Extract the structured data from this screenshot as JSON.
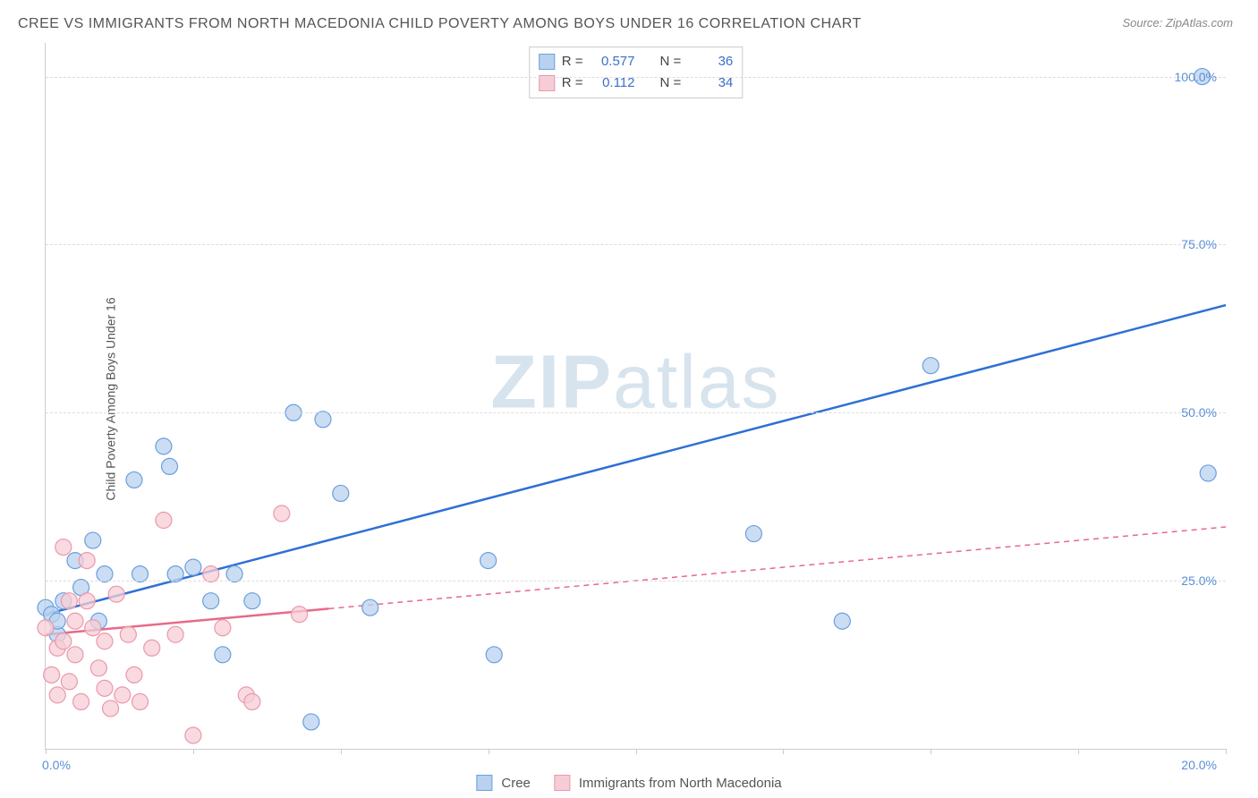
{
  "title": "CREE VS IMMIGRANTS FROM NORTH MACEDONIA CHILD POVERTY AMONG BOYS UNDER 16 CORRELATION CHART",
  "source": "Source: ZipAtlas.com",
  "ylabel": "Child Poverty Among Boys Under 16",
  "watermark_a": "ZIP",
  "watermark_b": "atlas",
  "chart": {
    "type": "scatter",
    "xlim": [
      0,
      20
    ],
    "ylim": [
      0,
      105
    ],
    "xtick_positions": [
      0,
      2.5,
      5,
      7.5,
      10,
      12.5,
      15,
      17.5,
      20
    ],
    "xtick_labels": {
      "0": "0.0%",
      "20": "20.0%"
    },
    "ytick_positions": [
      25,
      50,
      75,
      100
    ],
    "ytick_labels": [
      "25.0%",
      "50.0%",
      "75.0%",
      "100.0%"
    ],
    "grid_color": "#dddddd",
    "background_color": "#ffffff",
    "series": [
      {
        "name": "Cree",
        "color_fill": "#b9d1ef",
        "color_stroke": "#6a9fe0",
        "line_color": "#2e6fd6",
        "line_dash": "",
        "r": 0.577,
        "n": 36,
        "marker_r": 9,
        "trend": {
          "x1": 0,
          "y1": 20,
          "x2": 20,
          "y2": 66
        },
        "trend_solid_until": 20,
        "points": [
          [
            0.0,
            21
          ],
          [
            0.1,
            20
          ],
          [
            0.2,
            17
          ],
          [
            0.2,
            19
          ],
          [
            0.3,
            22
          ],
          [
            0.5,
            28
          ],
          [
            0.6,
            24
          ],
          [
            0.8,
            31
          ],
          [
            0.9,
            19
          ],
          [
            1.0,
            26
          ],
          [
            1.5,
            40
          ],
          [
            1.6,
            26
          ],
          [
            2.0,
            45
          ],
          [
            2.1,
            42
          ],
          [
            2.2,
            26
          ],
          [
            2.5,
            27
          ],
          [
            2.8,
            22
          ],
          [
            3.0,
            14
          ],
          [
            3.2,
            26
          ],
          [
            3.5,
            22
          ],
          [
            4.2,
            50
          ],
          [
            4.5,
            4
          ],
          [
            4.7,
            49
          ],
          [
            5.0,
            38
          ],
          [
            5.5,
            21
          ],
          [
            7.5,
            28
          ],
          [
            7.6,
            14
          ],
          [
            12.0,
            32
          ],
          [
            13.5,
            19
          ],
          [
            15.0,
            57
          ],
          [
            19.6,
            100
          ],
          [
            19.7,
            41
          ]
        ]
      },
      {
        "name": "Immigrants from North Macedonia",
        "color_fill": "#f6cdd6",
        "color_stroke": "#eb98ab",
        "line_color": "#e76a8a",
        "line_dash": "6,5",
        "r": 0.112,
        "n": 34,
        "marker_r": 9,
        "trend": {
          "x1": 0,
          "y1": 17,
          "x2": 20,
          "y2": 33
        },
        "trend_solid_until": 4.8,
        "points": [
          [
            0.0,
            18
          ],
          [
            0.1,
            11
          ],
          [
            0.2,
            8
          ],
          [
            0.2,
            15
          ],
          [
            0.3,
            30
          ],
          [
            0.3,
            16
          ],
          [
            0.4,
            22
          ],
          [
            0.4,
            10
          ],
          [
            0.5,
            14
          ],
          [
            0.5,
            19
          ],
          [
            0.6,
            7
          ],
          [
            0.7,
            22
          ],
          [
            0.7,
            28
          ],
          [
            0.8,
            18
          ],
          [
            0.9,
            12
          ],
          [
            1.0,
            9
          ],
          [
            1.0,
            16
          ],
          [
            1.1,
            6
          ],
          [
            1.2,
            23
          ],
          [
            1.3,
            8
          ],
          [
            1.4,
            17
          ],
          [
            1.5,
            11
          ],
          [
            1.6,
            7
          ],
          [
            1.8,
            15
          ],
          [
            2.0,
            34
          ],
          [
            2.2,
            17
          ],
          [
            2.5,
            2
          ],
          [
            2.8,
            26
          ],
          [
            3.0,
            18
          ],
          [
            3.4,
            8
          ],
          [
            3.5,
            7
          ],
          [
            4.0,
            35
          ],
          [
            4.3,
            20
          ]
        ]
      }
    ]
  },
  "stats_legend": {
    "r_label": "R =",
    "n_label": "N ="
  },
  "bottom_legend": {
    "items": [
      "Cree",
      "Immigrants from North Macedonia"
    ]
  }
}
